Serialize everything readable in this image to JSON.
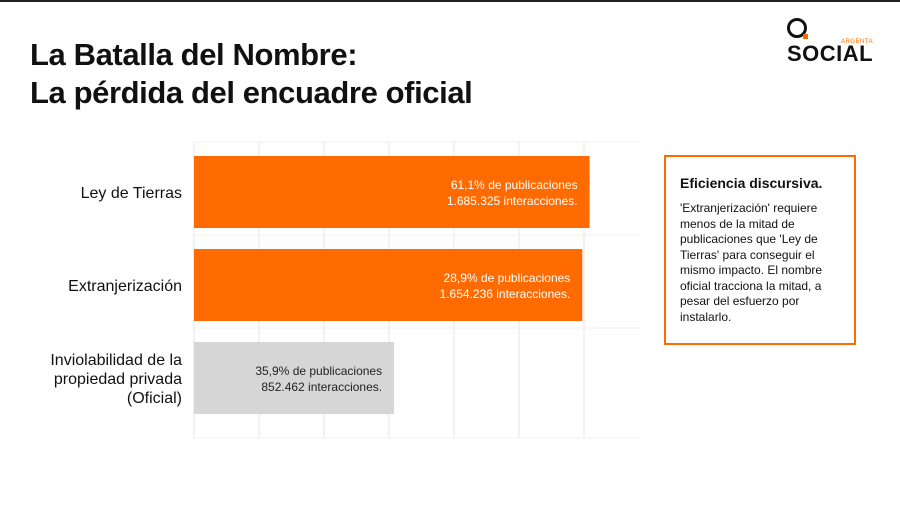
{
  "title_line1": "La Batalla del Nombre:",
  "title_line2": "La pérdida del encuadre oficial",
  "logo": {
    "main": "SOCIAL",
    "sub": "ARGENTA"
  },
  "insight": {
    "title": "Eficiencia discursiva.",
    "text": "'Extranjerización' requiere menos de la mitad de publicaciones que 'Ley de Tierras' para conseguir el mismo impacto. El nombre oficial tracciona la mitad, a pesar del esfuerzo por instalarlo."
  },
  "colors": {
    "accent": "#ff6b00",
    "official": "#d6d6d6",
    "grid": "#e6e6e6"
  },
  "chart_data": {
    "type": "bar",
    "orientation": "horizontal",
    "metric": "interacciones",
    "xlim": [
      0,
      1900000
    ],
    "grid": true,
    "categories": [
      {
        "label_lines": [
          "Ley de Tierras"
        ],
        "interactions": 1685325,
        "line1": "61,1% de publicaciones",
        "line2": "1.685.325 interacciones.",
        "color": "#ff6b00",
        "text_color": "#ffffff"
      },
      {
        "label_lines": [
          "Extranjerización"
        ],
        "interactions": 1654236,
        "line1": "28,9% de publicaciones",
        "line2": "1.654.236 interacciones.",
        "color": "#ff6b00",
        "text_color": "#ffffff"
      },
      {
        "label_lines": [
          "Inviolabilidad de la",
          "propiedad privada",
          "(Oficial)"
        ],
        "interactions": 852462,
        "line1": "35,9% de publicaciones",
        "line2": "852.462 interacciones.",
        "color": "#d6d6d6",
        "text_color": "#222222"
      }
    ]
  }
}
